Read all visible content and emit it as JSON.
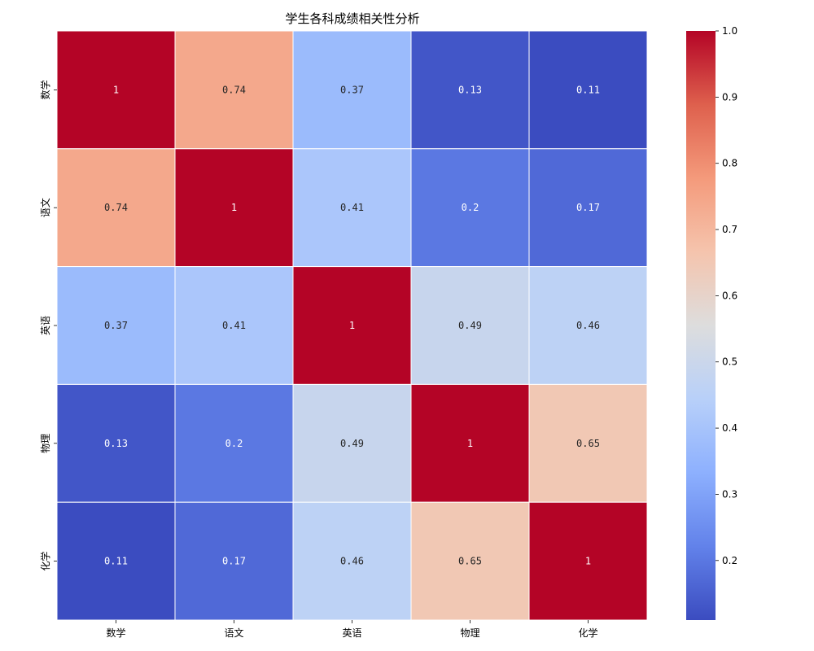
{
  "chart_data": {
    "type": "heatmap",
    "title": "学生各科成绩相关性分析",
    "xlabel": "",
    "ylabel": "",
    "x_categories": [
      "数学",
      "语文",
      "英语",
      "物理",
      "化学"
    ],
    "y_categories": [
      "数学",
      "语文",
      "英语",
      "物理",
      "化学"
    ],
    "matrix": [
      [
        1.0,
        0.74,
        0.37,
        0.13,
        0.11
      ],
      [
        0.74,
        1.0,
        0.41,
        0.2,
        0.17
      ],
      [
        0.37,
        0.41,
        1.0,
        0.49,
        0.46
      ],
      [
        0.13,
        0.2,
        0.49,
        1.0,
        0.65
      ],
      [
        0.11,
        0.17,
        0.46,
        0.65,
        1.0
      ]
    ],
    "annotations": [
      [
        "1",
        "0.74",
        "0.37",
        "0.13",
        "0.11"
      ],
      [
        "0.74",
        "1",
        "0.41",
        "0.2",
        "0.17"
      ],
      [
        "0.37",
        "0.41",
        "1",
        "0.49",
        "0.46"
      ],
      [
        "0.13",
        "0.2",
        "0.49",
        "1",
        "0.65"
      ],
      [
        "0.11",
        "0.17",
        "0.46",
        "0.65",
        "1"
      ]
    ],
    "colormap": "coolwarm",
    "colorbar": {
      "vmin": 0.11,
      "vmax": 1.0,
      "ticks": [
        0.2,
        0.3,
        0.4,
        0.5,
        0.6,
        0.7,
        0.8,
        0.9,
        1.0
      ],
      "tick_labels": [
        "0.2",
        "0.3",
        "0.4",
        "0.5",
        "0.6",
        "0.7",
        "0.8",
        "0.9",
        "1.0"
      ],
      "placement": "right"
    },
    "grid_line_color": "#ffffff"
  }
}
